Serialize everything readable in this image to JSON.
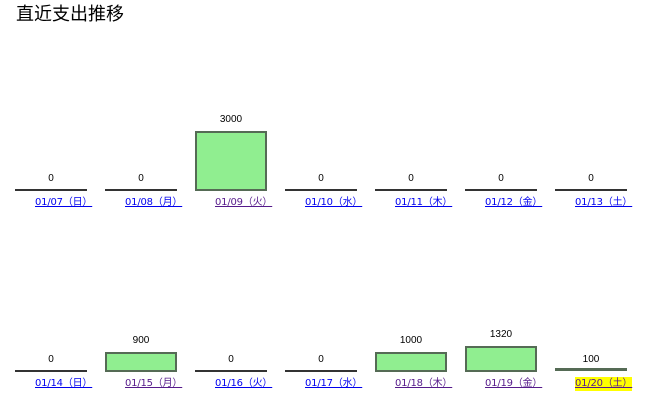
{
  "page": {
    "title": "直近支出推移"
  },
  "colors": {
    "bar_fill": "#90ee90",
    "bar_border": "#556b55",
    "link_unvisited": "#0000ee",
    "link_visited": "#551a8b",
    "today_highlight": "#ffff00"
  },
  "chart_data": {
    "type": "bar",
    "ylim": [
      0,
      3000
    ],
    "rows": [
      [
        {
          "date": "01/07（日）",
          "value": 0,
          "link_state": "unvisited"
        },
        {
          "date": "01/08（月）",
          "value": 0,
          "link_state": "unvisited"
        },
        {
          "date": "01/09（火）",
          "value": 3000,
          "link_state": "visited"
        },
        {
          "date": "01/10（水）",
          "value": 0,
          "link_state": "unvisited"
        },
        {
          "date": "01/11（木）",
          "value": 0,
          "link_state": "unvisited"
        },
        {
          "date": "01/12（金）",
          "value": 0,
          "link_state": "unvisited"
        },
        {
          "date": "01/13（土）",
          "value": 0,
          "link_state": "unvisited"
        }
      ],
      [
        {
          "date": "01/14（日）",
          "value": 0,
          "link_state": "unvisited"
        },
        {
          "date": "01/15（月）",
          "value": 900,
          "link_state": "visited"
        },
        {
          "date": "01/16（火）",
          "value": 0,
          "link_state": "unvisited"
        },
        {
          "date": "01/17（水）",
          "value": 0,
          "link_state": "unvisited"
        },
        {
          "date": "01/18（木）",
          "value": 1000,
          "link_state": "visited"
        },
        {
          "date": "01/19（金）",
          "value": 1320,
          "link_state": "visited"
        },
        {
          "date": "01/20（土）",
          "value": 100,
          "link_state": "today"
        }
      ]
    ]
  }
}
